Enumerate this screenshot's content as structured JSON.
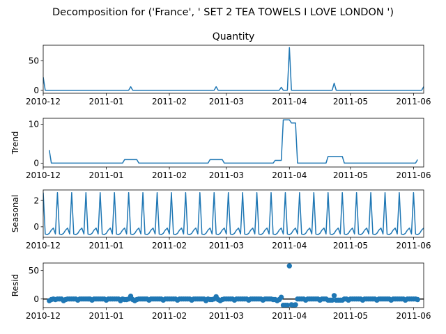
{
  "figure": {
    "suptitle": "Decomposition for ('France', ' SET 2 TEA TOWELS I LOVE LONDON ')"
  },
  "chart_data": [
    {
      "type": "line",
      "title": "Quantity",
      "ylabel": "",
      "xlim": [
        "2010-12-01",
        "2011-06-06"
      ],
      "ylim": [
        -5,
        76
      ],
      "yticks": [
        0,
        50
      ],
      "xticks": [
        "2010-12",
        "2011-01",
        "2011-02",
        "2011-03",
        "2011-04",
        "2011-05",
        "2011-06"
      ],
      "color": "#1f77b4",
      "points": [
        [
          "2010-12-01",
          22
        ],
        [
          "2010-12-02",
          0
        ],
        [
          "2011-01-12",
          0
        ],
        [
          "2011-01-13",
          6
        ],
        [
          "2011-01-14",
          0
        ],
        [
          "2011-02-23",
          0
        ],
        [
          "2011-02-24",
          6
        ],
        [
          "2011-02-25",
          0
        ],
        [
          "2011-03-27",
          0
        ],
        [
          "2011-03-28",
          5
        ],
        [
          "2011-03-29",
          0
        ],
        [
          "2011-03-31",
          0
        ],
        [
          "2011-04-01",
          72
        ],
        [
          "2011-04-02",
          0
        ],
        [
          "2011-04-22",
          0
        ],
        [
          "2011-04-23",
          12
        ],
        [
          "2011-04-24",
          0
        ],
        [
          "2011-06-05",
          0
        ],
        [
          "2011-06-06",
          6
        ]
      ]
    },
    {
      "type": "line",
      "title": "",
      "ylabel": "Trend",
      "xlim": [
        "2010-12-01",
        "2011-06-06"
      ],
      "ylim": [
        -1,
        11.5
      ],
      "yticks": [
        0,
        10
      ],
      "xticks": [
        "2010-12",
        "2011-01",
        "2011-02",
        "2011-03",
        "2011-04",
        "2011-05",
        "2011-06"
      ],
      "color": "#1f77b4",
      "points": [
        [
          "2010-12-04",
          3.3
        ],
        [
          "2010-12-05",
          0
        ],
        [
          "2011-01-09",
          0
        ],
        [
          "2011-01-10",
          0.9
        ],
        [
          "2011-01-16",
          0.9
        ],
        [
          "2011-01-17",
          0
        ],
        [
          "2011-02-20",
          0
        ],
        [
          "2011-02-21",
          0.9
        ],
        [
          "2011-02-27",
          0.9
        ],
        [
          "2011-02-28",
          0
        ],
        [
          "2011-03-24",
          0
        ],
        [
          "2011-03-25",
          0.7
        ],
        [
          "2011-03-28",
          0.7
        ],
        [
          "2011-03-29",
          11.1
        ],
        [
          "2011-04-01",
          11.1
        ],
        [
          "2011-04-02",
          10.3
        ],
        [
          "2011-04-04",
          10.3
        ],
        [
          "2011-04-05",
          0
        ],
        [
          "2011-04-19",
          0
        ],
        [
          "2011-04-20",
          1.7
        ],
        [
          "2011-04-27",
          1.7
        ],
        [
          "2011-04-28",
          0
        ],
        [
          "2011-06-02",
          0
        ],
        [
          "2011-06-03",
          0.9
        ]
      ]
    },
    {
      "type": "line",
      "title": "",
      "ylabel": "Seasonal",
      "xlim": [
        "2010-12-01",
        "2011-06-06"
      ],
      "ylim": [
        -0.8,
        2.8
      ],
      "yticks": [
        0,
        2
      ],
      "xticks": [
        "2010-12",
        "2011-01",
        "2011-02",
        "2011-03",
        "2011-04",
        "2011-05",
        "2011-06"
      ],
      "color": "#1f77b4",
      "period_days": 7,
      "weekly_pattern": [
        2.6,
        -0.55,
        -0.6,
        -0.5,
        -0.25,
        -0.1,
        -0.55
      ]
    },
    {
      "type": "scatter",
      "title": "",
      "ylabel": "Resid",
      "xlim": [
        "2010-12-01",
        "2011-06-06"
      ],
      "ylim": [
        -15,
        63
      ],
      "yticks": [
        0,
        50
      ],
      "xticks": [
        "2010-12",
        "2011-01",
        "2011-02",
        "2011-03",
        "2011-04",
        "2011-05",
        "2011-06"
      ],
      "color": "#1f77b4",
      "baseline": 0,
      "points": [
        [
          "2010-12-04",
          -3
        ],
        [
          "2010-12-05",
          -1
        ],
        [
          "2010-12-06",
          0
        ],
        [
          "2010-12-07",
          -1
        ],
        [
          "2010-12-08",
          0
        ],
        [
          "2010-12-09",
          0
        ],
        [
          "2010-12-10",
          0
        ],
        [
          "2010-12-11",
          -3
        ],
        [
          "2010-12-12",
          -1
        ],
        [
          "2010-12-13",
          0
        ],
        [
          "2010-12-14",
          0
        ],
        [
          "2010-12-15",
          0
        ],
        [
          "2010-12-16",
          0
        ],
        [
          "2010-12-17",
          0
        ],
        [
          "2010-12-18",
          -2
        ],
        [
          "2010-12-19",
          0
        ],
        [
          "2010-12-20",
          0
        ],
        [
          "2010-12-21",
          0
        ],
        [
          "2010-12-22",
          0
        ],
        [
          "2010-12-23",
          0
        ],
        [
          "2010-12-24",
          0
        ],
        [
          "2010-12-25",
          -2
        ],
        [
          "2010-12-26",
          0
        ],
        [
          "2010-12-27",
          0
        ],
        [
          "2010-12-28",
          0
        ],
        [
          "2010-12-29",
          0
        ],
        [
          "2010-12-30",
          0
        ],
        [
          "2010-12-31",
          0
        ],
        [
          "2011-01-01",
          -2
        ],
        [
          "2011-01-02",
          0
        ],
        [
          "2011-01-03",
          0
        ],
        [
          "2011-01-04",
          0
        ],
        [
          "2011-01-05",
          0
        ],
        [
          "2011-01-06",
          0
        ],
        [
          "2011-01-07",
          0
        ],
        [
          "2011-01-08",
          -3
        ],
        [
          "2011-01-09",
          0
        ],
        [
          "2011-01-10",
          -1
        ],
        [
          "2011-01-11",
          -1
        ],
        [
          "2011-01-12",
          0
        ],
        [
          "2011-01-13",
          5
        ],
        [
          "2011-01-14",
          -1
        ],
        [
          "2011-01-15",
          -3
        ],
        [
          "2011-01-16",
          -1
        ],
        [
          "2011-01-17",
          0
        ],
        [
          "2011-01-18",
          0
        ],
        [
          "2011-01-19",
          0
        ],
        [
          "2011-01-20",
          0
        ],
        [
          "2011-01-21",
          0
        ],
        [
          "2011-01-22",
          -2
        ],
        [
          "2011-01-23",
          0
        ],
        [
          "2011-01-24",
          0
        ],
        [
          "2011-01-25",
          0
        ],
        [
          "2011-01-26",
          0
        ],
        [
          "2011-01-27",
          0
        ],
        [
          "2011-01-28",
          0
        ],
        [
          "2011-01-29",
          -2
        ],
        [
          "2011-01-30",
          0
        ],
        [
          "2011-01-31",
          0
        ],
        [
          "2011-02-01",
          0
        ],
        [
          "2011-02-02",
          0
        ],
        [
          "2011-02-03",
          0
        ],
        [
          "2011-02-04",
          0
        ],
        [
          "2011-02-05",
          -2
        ],
        [
          "2011-02-06",
          0
        ],
        [
          "2011-02-07",
          0
        ],
        [
          "2011-02-08",
          0
        ],
        [
          "2011-02-09",
          0
        ],
        [
          "2011-02-10",
          0
        ],
        [
          "2011-02-11",
          0
        ],
        [
          "2011-02-12",
          -2
        ],
        [
          "2011-02-13",
          0
        ],
        [
          "2011-02-14",
          0
        ],
        [
          "2011-02-15",
          0
        ],
        [
          "2011-02-16",
          0
        ],
        [
          "2011-02-17",
          0
        ],
        [
          "2011-02-18",
          0
        ],
        [
          "2011-02-19",
          -3
        ],
        [
          "2011-02-20",
          0
        ],
        [
          "2011-02-21",
          -1
        ],
        [
          "2011-02-22",
          -1
        ],
        [
          "2011-02-23",
          0
        ],
        [
          "2011-02-24",
          4
        ],
        [
          "2011-02-25",
          -1
        ],
        [
          "2011-02-26",
          -3
        ],
        [
          "2011-02-27",
          -1
        ],
        [
          "2011-02-28",
          0
        ],
        [
          "2011-03-01",
          0
        ],
        [
          "2011-03-02",
          0
        ],
        [
          "2011-03-03",
          0
        ],
        [
          "2011-03-04",
          0
        ],
        [
          "2011-03-05",
          -2
        ],
        [
          "2011-03-06",
          0
        ],
        [
          "2011-03-07",
          0
        ],
        [
          "2011-03-08",
          0
        ],
        [
          "2011-03-09",
          0
        ],
        [
          "2011-03-10",
          0
        ],
        [
          "2011-03-11",
          0
        ],
        [
          "2011-03-12",
          -2
        ],
        [
          "2011-03-13",
          0
        ],
        [
          "2011-03-14",
          0
        ],
        [
          "2011-03-15",
          0
        ],
        [
          "2011-03-16",
          0
        ],
        [
          "2011-03-17",
          0
        ],
        [
          "2011-03-18",
          0
        ],
        [
          "2011-03-19",
          -2
        ],
        [
          "2011-03-20",
          0
        ],
        [
          "2011-03-21",
          0
        ],
        [
          "2011-03-22",
          0
        ],
        [
          "2011-03-23",
          0
        ],
        [
          "2011-03-24",
          -1
        ],
        [
          "2011-03-25",
          -1
        ],
        [
          "2011-03-26",
          -3
        ],
        [
          "2011-03-27",
          -1
        ],
        [
          "2011-03-28",
          3
        ],
        [
          "2011-03-29",
          -11
        ],
        [
          "2011-03-30",
          -11
        ],
        [
          "2011-03-31",
          -11
        ],
        [
          "2011-04-01",
          58
        ],
        [
          "2011-04-02",
          -10
        ],
        [
          "2011-04-03",
          -11
        ],
        [
          "2011-04-04",
          -10
        ],
        [
          "2011-04-05",
          0
        ],
        [
          "2011-04-06",
          0
        ],
        [
          "2011-04-07",
          0
        ],
        [
          "2011-04-08",
          0
        ],
        [
          "2011-04-09",
          -2
        ],
        [
          "2011-04-10",
          0
        ],
        [
          "2011-04-11",
          0
        ],
        [
          "2011-04-12",
          0
        ],
        [
          "2011-04-13",
          0
        ],
        [
          "2011-04-14",
          0
        ],
        [
          "2011-04-15",
          0
        ],
        [
          "2011-04-16",
          -2
        ],
        [
          "2011-04-17",
          0
        ],
        [
          "2011-04-18",
          0
        ],
        [
          "2011-04-19",
          0
        ],
        [
          "2011-04-20",
          -2
        ],
        [
          "2011-04-21",
          -2
        ],
        [
          "2011-04-22",
          -2
        ],
        [
          "2011-04-23",
          6
        ],
        [
          "2011-04-24",
          -2
        ],
        [
          "2011-04-25",
          -2
        ],
        [
          "2011-04-26",
          -2
        ],
        [
          "2011-04-27",
          -2
        ],
        [
          "2011-04-28",
          0
        ],
        [
          "2011-04-29",
          0
        ],
        [
          "2011-04-30",
          -2
        ],
        [
          "2011-05-01",
          0
        ],
        [
          "2011-05-02",
          0
        ],
        [
          "2011-05-03",
          0
        ],
        [
          "2011-05-04",
          0
        ],
        [
          "2011-05-05",
          0
        ],
        [
          "2011-05-06",
          0
        ],
        [
          "2011-05-07",
          -2
        ],
        [
          "2011-05-08",
          0
        ],
        [
          "2011-05-09",
          0
        ],
        [
          "2011-05-10",
          0
        ],
        [
          "2011-05-11",
          0
        ],
        [
          "2011-05-12",
          0
        ],
        [
          "2011-05-13",
          0
        ],
        [
          "2011-05-14",
          -2
        ],
        [
          "2011-05-15",
          0
        ],
        [
          "2011-05-16",
          0
        ],
        [
          "2011-05-17",
          0
        ],
        [
          "2011-05-18",
          0
        ],
        [
          "2011-05-19",
          0
        ],
        [
          "2011-05-20",
          0
        ],
        [
          "2011-05-21",
          -2
        ],
        [
          "2011-05-22",
          0
        ],
        [
          "2011-05-23",
          0
        ],
        [
          "2011-05-24",
          0
        ],
        [
          "2011-05-25",
          0
        ],
        [
          "2011-05-26",
          0
        ],
        [
          "2011-05-27",
          0
        ],
        [
          "2011-05-28",
          -2
        ],
        [
          "2011-05-29",
          0
        ],
        [
          "2011-05-30",
          0
        ],
        [
          "2011-05-31",
          0
        ],
        [
          "2011-06-01",
          0
        ],
        [
          "2011-06-02",
          0
        ],
        [
          "2011-06-03",
          -1
        ]
      ]
    }
  ]
}
